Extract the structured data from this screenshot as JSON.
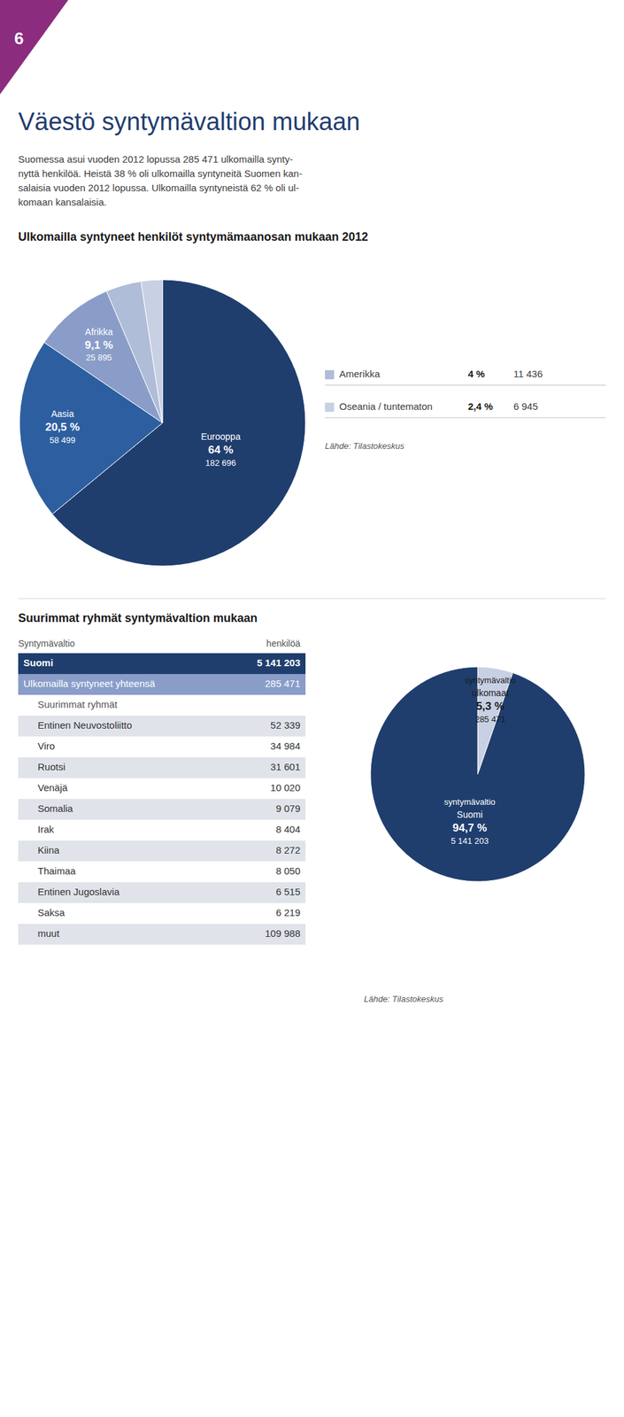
{
  "page_number": "6",
  "page_number_color": "#8b2c7e",
  "page_title": "Väestö syntymävaltion mukaan",
  "intro_lines": [
    "Suomessa asui vuoden 2012 lopussa 285 471 ulkomailla synty-",
    "nyttä henkilöä. Heistä 38 % oli ulkomailla syntyneitä Suomen kan-",
    "salaisia vuoden 2012 lopussa. Ulkomailla syntyneistä 62 % oli ul-",
    "komaan kansalaisia."
  ],
  "chart_data": [
    {
      "type": "pie",
      "title": "Ulkomailla syntyneet henkilöt syntymämaanosan mukaan 2012",
      "categories": [
        "Eurooppa",
        "Aasia",
        "Afrikka",
        "Amerikka",
        "Oseania / tuntematon"
      ],
      "values": [
        64.0,
        20.5,
        9.1,
        4.0,
        2.4
      ],
      "value_labels": [
        "64 %",
        "20,5 %",
        "9,1 %",
        "4 %",
        "2,4 %"
      ],
      "counts": [
        182696,
        58499,
        25895,
        11436,
        6945
      ],
      "count_labels": [
        "182 696",
        "58 499",
        "25 895",
        "11 436",
        "6 945"
      ],
      "colors": [
        "#1f3e6e",
        "#2d5fa0",
        "#8a9dc9",
        "#b0bdd8",
        "#c8d0e3"
      ],
      "source": "Lähde: Tilastokeskus"
    },
    {
      "type": "table",
      "title": "Suurimmat ryhmät syntymävaltion mukaan",
      "columns": [
        "Syntymävaltio",
        "henkilöä"
      ],
      "categories": [
        "Suomi",
        "Ulkomailla syntyneet yhteensä",
        "Suurimmat ryhmät",
        "Entinen Neuvostoliitto",
        "Viro",
        "Ruotsi",
        "Venäjä",
        "Somalia",
        "Irak",
        "Kiina",
        "Thaimaa",
        "Entinen Jugoslavia",
        "Saksa",
        "muut"
      ],
      "values": [
        5141203,
        285471,
        null,
        52339,
        34984,
        31601,
        10020,
        9079,
        8404,
        8272,
        8050,
        6515,
        6219,
        109988
      ],
      "value_labels": [
        "5 141 203",
        "285 471",
        null,
        "52 339",
        "34 984",
        "31 601",
        "10 020",
        "9 079",
        "8 404",
        "8 272",
        "8 050",
        "6 515",
        "6 219",
        "109 988"
      ],
      "colors": [
        "#1f3e6e",
        "#8a9dc9",
        "#ffffff",
        "#e0e4ea",
        "#ffffff",
        "#e0e4ea",
        "#ffffff",
        "#e0e4ea",
        "#ffffff",
        "#e0e4ea",
        "#ffffff",
        "#e0e4ea",
        "#ffffff",
        "#e0e4ea"
      ]
    },
    {
      "type": "pie",
      "subtitle": "syntymävaltio",
      "categories": [
        "ulkomaat",
        "Suomi"
      ],
      "values": [
        5.3,
        94.7
      ],
      "value_labels": [
        "5,3 %",
        "94,7 %"
      ],
      "counts": [
        285471,
        5141203
      ],
      "count_labels": [
        "285 471",
        "5 141 203"
      ],
      "colors": [
        "#c8d0e3",
        "#1f3e6e"
      ],
      "source": "Lähde: Tilastokeskus"
    }
  ]
}
